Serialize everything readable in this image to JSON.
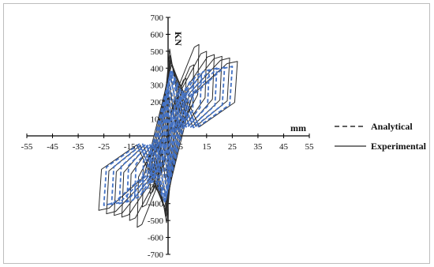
{
  "chart_data": {
    "type": "line",
    "xlabel": "mm",
    "ylabel": "KN",
    "xlim": [
      -55,
      55
    ],
    "ylim": [
      -700,
      700
    ],
    "x_ticks": [
      -55,
      -45,
      -35,
      -25,
      -15,
      -5,
      5,
      15,
      25,
      35,
      45,
      55
    ],
    "y_ticks": [
      700,
      600,
      500,
      400,
      300,
      200,
      100,
      -100,
      -200,
      -300,
      -400,
      -500,
      -600,
      -700
    ],
    "grid": false,
    "legend_position": "right",
    "series": [
      {
        "name": "Analytical",
        "line_style": "dashed",
        "color": "#4472c4",
        "cycle_amplitudes": [
          {
            "disp": 2,
            "force": 150
          },
          {
            "disp": 4,
            "force": 220
          },
          {
            "disp": 7,
            "force": 280
          },
          {
            "disp": 10,
            "force": 330
          },
          {
            "disp": 13,
            "force": 370
          },
          {
            "disp": 16,
            "force": 390
          },
          {
            "disp": 19,
            "force": 400
          },
          {
            "disp": 22,
            "force": 405
          },
          {
            "disp": 25,
            "force": 410
          }
        ]
      },
      {
        "name": "Experimental",
        "line_style": "solid",
        "color": "#2b2b2b",
        "cycle_amplitudes": [
          {
            "disp": 2,
            "force": 180
          },
          {
            "disp": 4,
            "force": 260
          },
          {
            "disp": 7,
            "force": 340
          },
          {
            "disp": 10,
            "force": 420
          },
          {
            "disp": 12,
            "force": 540
          },
          {
            "disp": 15,
            "force": 500
          },
          {
            "disp": 18,
            "force": 480
          },
          {
            "disp": 21,
            "force": 470
          },
          {
            "disp": 24,
            "force": 460
          },
          {
            "disp": 27,
            "force": 440
          }
        ]
      }
    ]
  },
  "legend": {
    "analytical_label": "Analytical",
    "experimental_label": "Experimental"
  },
  "axis_titles": {
    "x": "mm",
    "y": "KN"
  }
}
